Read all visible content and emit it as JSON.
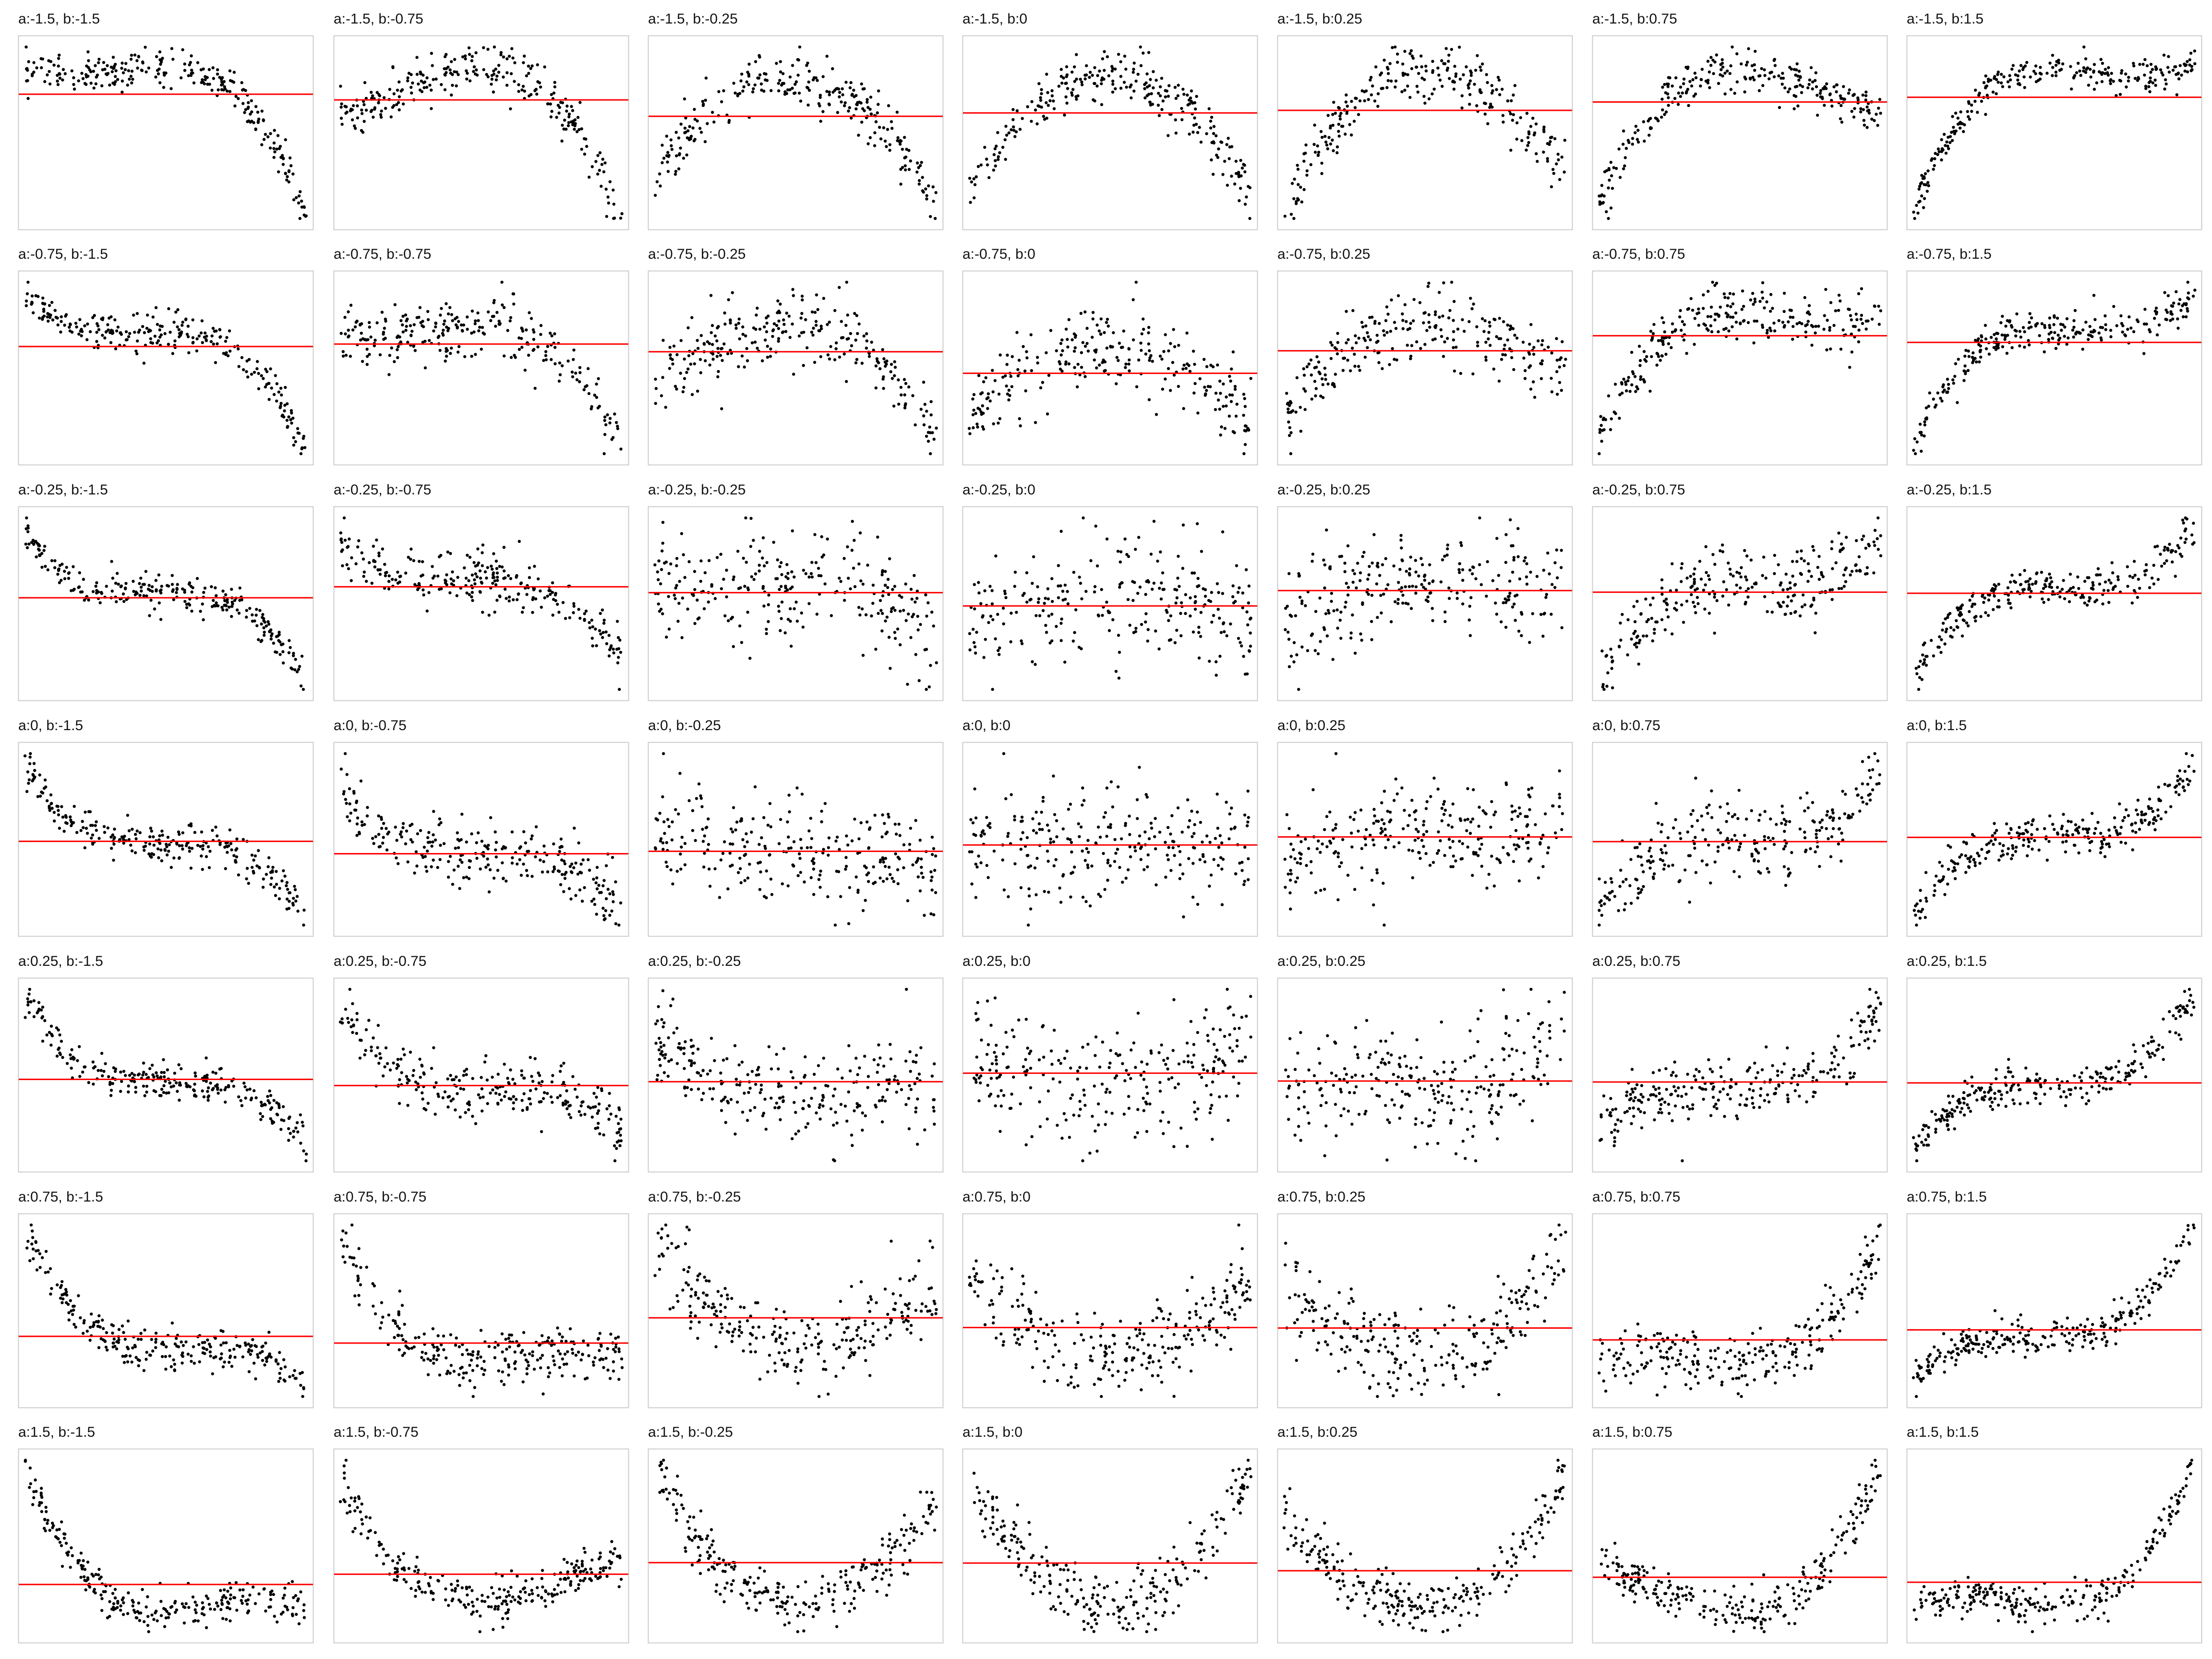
{
  "colors": {
    "background": "#ffffff",
    "frame": "#cccccc",
    "points": "#000000",
    "mean_line": "#ff0000"
  },
  "grid": {
    "rows": 7,
    "cols": 7
  },
  "chart_data": {
    "type": "scatter",
    "description_values": "7x7 grid of scatter panels; each panel is a noisy cubic y = a*x^2 + b*x^3 + noise over x in [-1, 1], with a horizontal red line at the mean of y. Axes have no ticks or labels.",
    "a_values": [
      -1.5,
      -0.75,
      -0.25,
      0,
      0.25,
      0.75,
      1.5
    ],
    "b_values": [
      -1.5,
      -0.75,
      -0.25,
      0,
      0.25,
      0.75,
      1.5
    ],
    "panels": [
      {
        "title": "a:-1.5, b:-1.5",
        "a": -1.5,
        "b": -1.5,
        "mean": -0.45
      },
      {
        "title": "a:-1.5, b:-0.75",
        "a": -1.5,
        "b": -0.75,
        "mean": -0.5
      },
      {
        "title": "a:-1.5, b:-0.25",
        "a": -1.5,
        "b": -0.25,
        "mean": -0.5
      },
      {
        "title": "a:-1.5, b:0",
        "a": -1.5,
        "b": 0,
        "mean": -0.5
      },
      {
        "title": "a:-1.5, b:0.25",
        "a": -1.5,
        "b": 0.25,
        "mean": -0.5
      },
      {
        "title": "a:-1.5, b:0.75",
        "a": -1.5,
        "b": 0.75,
        "mean": -0.5
      },
      {
        "title": "a:-1.5, b:1.5",
        "a": -1.5,
        "b": 1.5,
        "mean": -0.5
      },
      {
        "title": "a:-0.75, b:-1.5",
        "a": -0.75,
        "b": -1.5,
        "mean": -0.25
      },
      {
        "title": "a:-0.75, b:-0.75",
        "a": -0.75,
        "b": -0.75,
        "mean": -0.25
      },
      {
        "title": "a:-0.75, b:-0.25",
        "a": -0.75,
        "b": -0.25,
        "mean": -0.25
      },
      {
        "title": "a:-0.75, b:0",
        "a": -0.75,
        "b": 0,
        "mean": -0.25
      },
      {
        "title": "a:-0.75, b:0.25",
        "a": -0.75,
        "b": 0.25,
        "mean": -0.25
      },
      {
        "title": "a:-0.75, b:0.75",
        "a": -0.75,
        "b": 0.75,
        "mean": -0.25
      },
      {
        "title": "a:-0.75, b:1.5",
        "a": -0.75,
        "b": 1.5,
        "mean": -0.25
      },
      {
        "title": "a:-0.25, b:-1.5",
        "a": -0.25,
        "b": -1.5,
        "mean": -0.08
      },
      {
        "title": "a:-0.25, b:-0.75",
        "a": -0.25,
        "b": -0.75,
        "mean": -0.08
      },
      {
        "title": "a:-0.25, b:-0.25",
        "a": -0.25,
        "b": -0.25,
        "mean": -0.08
      },
      {
        "title": "a:-0.25, b:0",
        "a": -0.25,
        "b": 0,
        "mean": -0.08
      },
      {
        "title": "a:-0.25, b:0.25",
        "a": -0.25,
        "b": 0.25,
        "mean": -0.08
      },
      {
        "title": "a:-0.25, b:0.75",
        "a": -0.25,
        "b": 0.75,
        "mean": -0.08
      },
      {
        "title": "a:-0.25, b:1.5",
        "a": -0.25,
        "b": 1.5,
        "mean": -0.08
      },
      {
        "title": "a:0, b:-1.5",
        "a": 0,
        "b": -1.5,
        "mean": 0
      },
      {
        "title": "a:0, b:-0.75",
        "a": 0,
        "b": -0.75,
        "mean": 0
      },
      {
        "title": "a:0, b:-0.25",
        "a": 0,
        "b": -0.25,
        "mean": 0
      },
      {
        "title": "a:0, b:0",
        "a": 0,
        "b": 0,
        "mean": 0
      },
      {
        "title": "a:0, b:0.25",
        "a": 0,
        "b": 0.25,
        "mean": 0
      },
      {
        "title": "a:0, b:0.75",
        "a": 0,
        "b": 0.75,
        "mean": 0
      },
      {
        "title": "a:0, b:1.5",
        "a": 0,
        "b": 1.5,
        "mean": 0
      },
      {
        "title": "a:0.25, b:-1.5",
        "a": 0.25,
        "b": -1.5,
        "mean": 0.08
      },
      {
        "title": "a:0.25, b:-0.75",
        "a": 0.25,
        "b": -0.75,
        "mean": 0.08
      },
      {
        "title": "a:0.25, b:-0.25",
        "a": 0.25,
        "b": -0.25,
        "mean": 0.08
      },
      {
        "title": "a:0.25, b:0",
        "a": 0.25,
        "b": 0,
        "mean": 0.08
      },
      {
        "title": "a:0.25, b:0.25",
        "a": 0.25,
        "b": 0.25,
        "mean": 0.08
      },
      {
        "title": "a:0.25, b:0.75",
        "a": 0.25,
        "b": 0.75,
        "mean": 0.08
      },
      {
        "title": "a:0.25, b:1.5",
        "a": 0.25,
        "b": 1.5,
        "mean": 0.08
      },
      {
        "title": "a:0.75, b:-1.5",
        "a": 0.75,
        "b": -1.5,
        "mean": 0.25
      },
      {
        "title": "a:0.75, b:-0.75",
        "a": 0.75,
        "b": -0.75,
        "mean": 0.25
      },
      {
        "title": "a:0.75, b:-0.25",
        "a": 0.75,
        "b": -0.25,
        "mean": 0.25
      },
      {
        "title": "a:0.75, b:0",
        "a": 0.75,
        "b": 0,
        "mean": 0.25
      },
      {
        "title": "a:0.75, b:0.25",
        "a": 0.75,
        "b": 0.25,
        "mean": 0.25
      },
      {
        "title": "a:0.75, b:0.75",
        "a": 0.75,
        "b": 0.75,
        "mean": 0.25
      },
      {
        "title": "a:0.75, b:1.5",
        "a": 0.75,
        "b": 1.5,
        "mean": 0.25
      },
      {
        "title": "a:1.5, b:-1.5",
        "a": 1.5,
        "b": -1.5,
        "mean": 0.5
      },
      {
        "title": "a:1.5, b:-0.75",
        "a": 1.5,
        "b": -0.75,
        "mean": 0.5
      },
      {
        "title": "a:1.5, b:-0.25",
        "a": 1.5,
        "b": -0.25,
        "mean": 0.5
      },
      {
        "title": "a:1.5, b:0",
        "a": 1.5,
        "b": 0,
        "mean": 0.5
      },
      {
        "title": "a:1.5, b:0.25",
        "a": 1.5,
        "b": 0.25,
        "mean": 0.5
      },
      {
        "title": "a:1.5, b:0.75",
        "a": 1.5,
        "b": 0.75,
        "mean": 0.5
      },
      {
        "title": "a:1.5, b:1.5",
        "a": 1.5,
        "b": 1.5,
        "mean": 0.5
      }
    ],
    "xlim": [
      -1,
      1
    ],
    "grid": false,
    "legend": "none"
  }
}
